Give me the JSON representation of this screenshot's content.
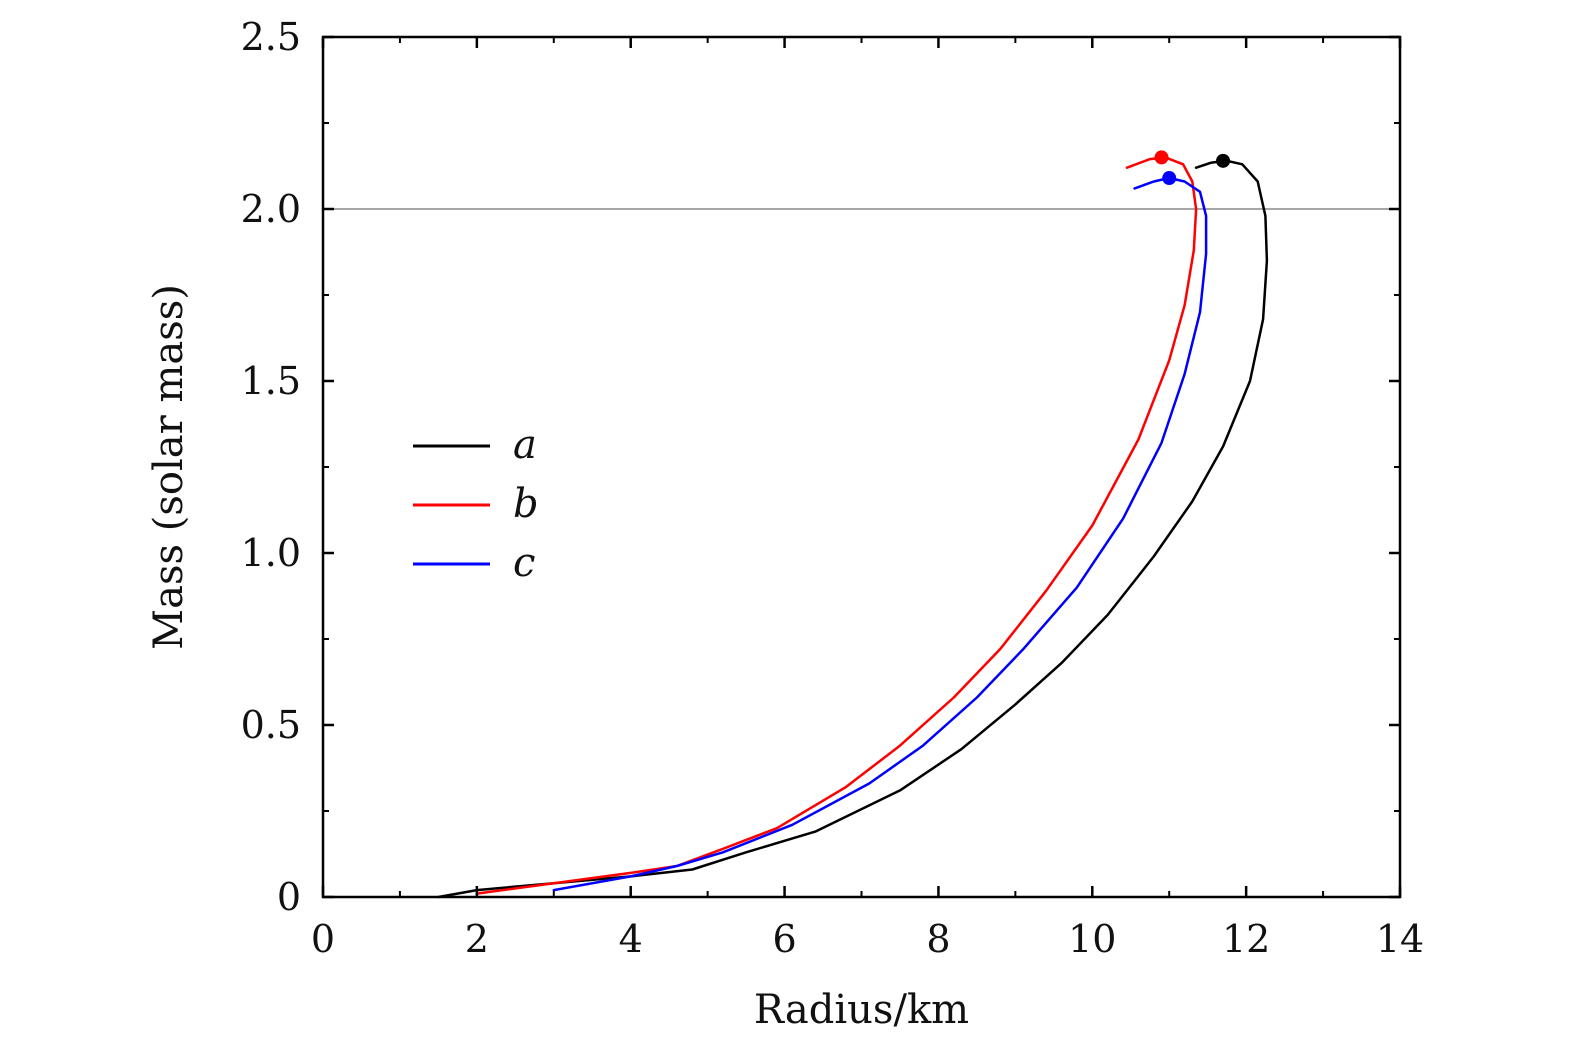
{
  "chart_data": {
    "type": "line",
    "xlabel": "Radius/km",
    "ylabel": "Mass (solar mass)",
    "xlim": [
      0,
      14
    ],
    "ylim": [
      0,
      2.5
    ],
    "xticks": [
      0,
      2,
      4,
      6,
      8,
      10,
      12,
      14
    ],
    "xtick_labels": [
      "0",
      "2",
      "4",
      "6",
      "8",
      "10",
      "12",
      "14"
    ],
    "yticks": [
      0,
      0.5,
      1.0,
      1.5,
      2.0,
      2.5
    ],
    "ytick_labels": [
      "0",
      "0.5",
      "1.0",
      "1.5",
      "2.0",
      "2.5"
    ],
    "reference_line": {
      "y": 2.0,
      "color": "#888888"
    },
    "grid": false,
    "legend": {
      "position": "center-left"
    },
    "series": [
      {
        "name": "a",
        "color": "#000000",
        "x": [
          1.5,
          2.0,
          3.0,
          4.0,
          4.8,
          5.5,
          6.4,
          7.5,
          8.3,
          9.0,
          9.6,
          10.2,
          10.8,
          11.3,
          11.7,
          12.05,
          12.22,
          12.27,
          12.25,
          12.15,
          11.95,
          11.75,
          11.55,
          11.35
        ],
        "y": [
          0.0,
          0.02,
          0.04,
          0.06,
          0.08,
          0.13,
          0.19,
          0.31,
          0.43,
          0.56,
          0.68,
          0.82,
          0.99,
          1.15,
          1.31,
          1.5,
          1.68,
          1.85,
          1.98,
          2.08,
          2.13,
          2.14,
          2.135,
          2.12
        ],
        "max_point": {
          "x": 11.7,
          "y": 2.14
        }
      },
      {
        "name": "b",
        "color": "#ff0000",
        "x": [
          2.0,
          3.0,
          4.0,
          4.6,
          5.2,
          5.9,
          6.8,
          7.5,
          8.2,
          8.8,
          9.4,
          10.0,
          10.6,
          11.0,
          11.2,
          11.32,
          11.35,
          11.3,
          11.18,
          10.95,
          10.75,
          10.45
        ],
        "y": [
          0.01,
          0.04,
          0.07,
          0.09,
          0.14,
          0.2,
          0.32,
          0.44,
          0.58,
          0.72,
          0.89,
          1.08,
          1.33,
          1.56,
          1.72,
          1.88,
          2.0,
          2.08,
          2.13,
          2.15,
          2.145,
          2.12
        ],
        "max_point": {
          "x": 10.9,
          "y": 2.15
        }
      },
      {
        "name": "c",
        "color": "#0000ff",
        "x": [
          3.0,
          4.0,
          4.6,
          5.2,
          6.1,
          7.1,
          7.8,
          8.5,
          9.1,
          9.8,
          10.4,
          10.9,
          11.2,
          11.4,
          11.48,
          11.48,
          11.4,
          11.2,
          11.0,
          10.8,
          10.55
        ],
        "y": [
          0.02,
          0.06,
          0.09,
          0.13,
          0.21,
          0.33,
          0.44,
          0.58,
          0.72,
          0.9,
          1.1,
          1.32,
          1.52,
          1.7,
          1.87,
          1.98,
          2.05,
          2.08,
          2.09,
          2.08,
          2.06
        ],
        "max_point": {
          "x": 11.0,
          "y": 2.09
        }
      }
    ]
  }
}
